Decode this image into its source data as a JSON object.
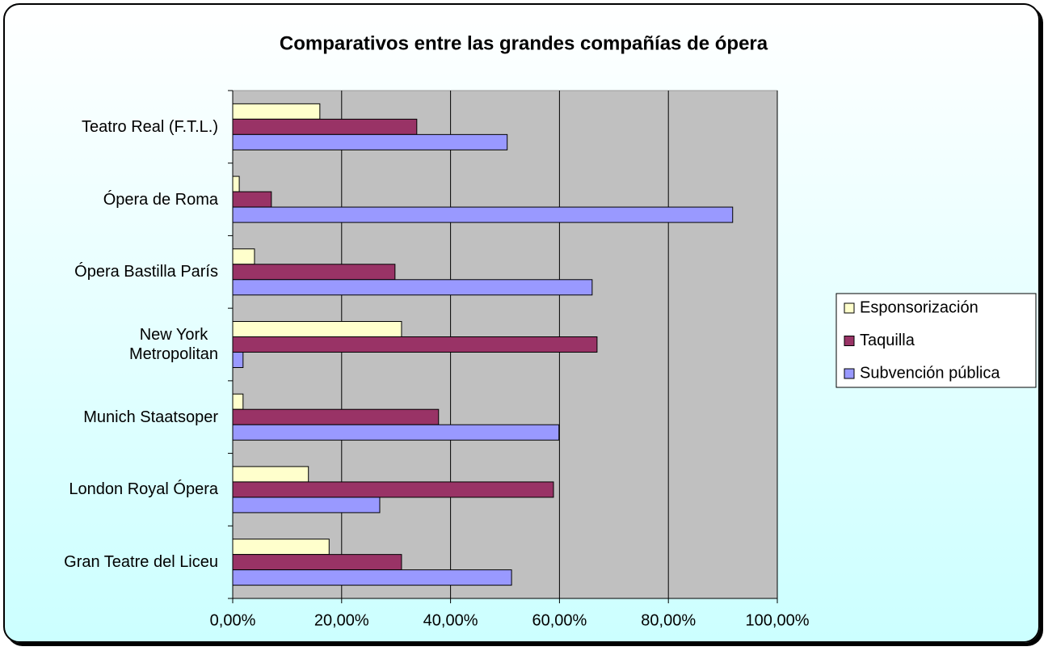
{
  "chart_data": {
    "type": "bar",
    "orientation": "horizontal",
    "title": "Comparativos entre las grandes compañías de ópera",
    "categories": [
      "Teatro Real (F.T.L.)",
      "Ópera de Roma",
      "Ópera Bastilla París",
      "New York\nMetropolitan",
      "Munich Staatsoper",
      "London Royal Ópera",
      "Gran Teatre del Liceu"
    ],
    "series": [
      {
        "name": "Esponsorización",
        "color": "#ffffcc",
        "values": [
          16.0,
          1.2,
          4.0,
          31.0,
          1.9,
          13.9,
          17.7
        ]
      },
      {
        "name": "Taquilla",
        "color": "#993366",
        "values": [
          33.8,
          7.1,
          29.8,
          66.9,
          37.8,
          58.9,
          31.0
        ]
      },
      {
        "name": "Subvención pública",
        "color": "#9999ff",
        "values": [
          50.4,
          91.8,
          66.0,
          1.9,
          59.9,
          27.0,
          51.2
        ]
      }
    ],
    "xlim": [
      0,
      100
    ],
    "xticks": [
      {
        "value": 0,
        "label": "0,00%"
      },
      {
        "value": 20,
        "label": "20,00%"
      },
      {
        "value": 40,
        "label": "40,00%"
      },
      {
        "value": 60,
        "label": "60,00%"
      },
      {
        "value": 80,
        "label": "80,00%"
      },
      {
        "value": 100,
        "label": "100,00%"
      }
    ],
    "grid": true,
    "legend": "right"
  }
}
